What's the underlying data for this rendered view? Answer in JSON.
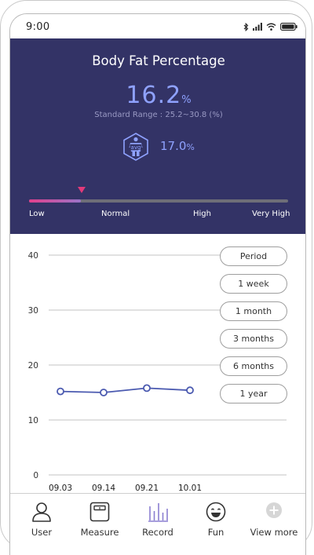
{
  "status_bar": {
    "time": "9:00"
  },
  "header": {
    "title": "Body Fat Percentage",
    "value": "16.2",
    "unit": "%",
    "standard_range": "Standard Range : 25.2~30.8 (%)",
    "avg_icon_text": "avg",
    "avg_value": "17.0",
    "avg_unit": "%",
    "level_indicator": 0.2,
    "levels": [
      "Low",
      "Normal",
      "High",
      "Very High"
    ]
  },
  "chart_data": {
    "type": "line",
    "x": [
      "09.03",
      "09.14",
      "09.21",
      "10.01"
    ],
    "y_ticks": [
      "40",
      "30",
      "20",
      "10",
      "0"
    ],
    "ylim": [
      0,
      40
    ],
    "series": [
      {
        "values": [
          15.2,
          15.0,
          15.8,
          15.4
        ]
      }
    ],
    "grid": true,
    "color": "#4b5ab0"
  },
  "period_selector": {
    "title": "Period",
    "options": [
      "1 week",
      "1 month",
      "3 months",
      "6 months",
      "1 year"
    ]
  },
  "tabbar": {
    "items": [
      {
        "label": "User",
        "icon": "user-icon"
      },
      {
        "label": "Measure",
        "icon": "scale-icon"
      },
      {
        "label": "Record",
        "icon": "bar-chart-icon",
        "active": true
      },
      {
        "label": "Fun",
        "icon": "smile-icon"
      },
      {
        "label": "View more",
        "icon": "plus-circle-icon"
      }
    ]
  },
  "colors": {
    "header_bg": "#333366",
    "accent": "#8fa2ff",
    "marker": "#e23a7a",
    "active_tab": "#8a7fd0"
  }
}
